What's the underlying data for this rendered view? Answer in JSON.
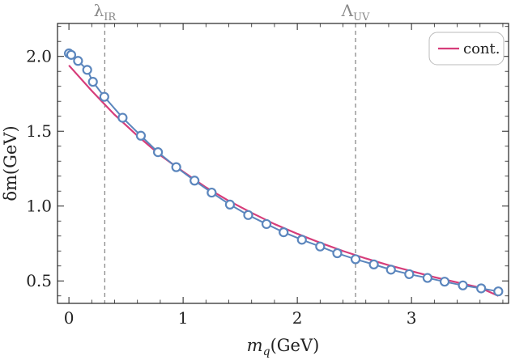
{
  "chart_data": {
    "type": "line",
    "xlabel": "m_q(GeV)",
    "ylabel": "δm(GeV)",
    "xlim": [
      -0.1,
      3.85
    ],
    "ylim": [
      0.35,
      2.22
    ],
    "x_ticks": [
      "0",
      "1",
      "2",
      "3"
    ],
    "x_tick_values": [
      0,
      1,
      2,
      3
    ],
    "y_ticks": [
      "0.5",
      "1.0",
      "1.5",
      "2.0"
    ],
    "y_tick_values": [
      0.5,
      1.0,
      1.5,
      2.0
    ],
    "grid": false,
    "legend_position": "top-right",
    "vlines": [
      {
        "label": "λ_IR",
        "x": 0.314
      },
      {
        "label": "Λ_UV",
        "x": 2.51
      }
    ],
    "series": [
      {
        "name": "cont.",
        "style": "line",
        "color": "#d63d7a",
        "x": [
          0.0,
          0.2,
          0.4,
          0.6,
          0.8,
          1.0,
          1.2,
          1.4,
          1.6,
          1.8,
          2.0,
          2.2,
          2.4,
          2.6,
          2.8,
          3.0,
          3.2,
          3.4,
          3.6,
          3.76
        ],
        "values": [
          1.94,
          1.77,
          1.61,
          1.47,
          1.34,
          1.23,
          1.125,
          1.035,
          0.955,
          0.88,
          0.815,
          0.755,
          0.7,
          0.65,
          0.605,
          0.565,
          0.525,
          0.49,
          0.455,
          0.4
        ]
      },
      {
        "style": "line-markers",
        "color": "#5b86bd",
        "x": [
          0.0,
          0.02,
          0.08,
          0.16,
          0.21,
          0.31,
          0.47,
          0.63,
          0.78,
          0.94,
          1.1,
          1.25,
          1.41,
          1.57,
          1.73,
          1.88,
          2.04,
          2.2,
          2.35,
          2.51,
          2.67,
          2.82,
          2.98,
          3.14,
          3.29,
          3.45,
          3.61,
          3.76
        ],
        "values": [
          2.02,
          2.01,
          1.97,
          1.91,
          1.83,
          1.73,
          1.59,
          1.47,
          1.36,
          1.26,
          1.17,
          1.09,
          1.01,
          0.94,
          0.88,
          0.825,
          0.775,
          0.73,
          0.685,
          0.645,
          0.61,
          0.575,
          0.545,
          0.52,
          0.495,
          0.47,
          0.45,
          0.43
        ]
      }
    ]
  }
}
